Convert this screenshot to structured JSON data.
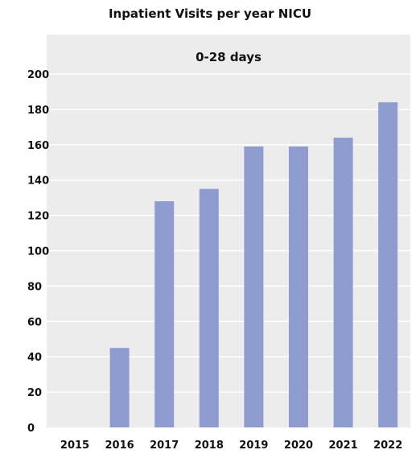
{
  "chart_data": {
    "type": "bar",
    "title": "Inpatient Visits per year NICU",
    "subtitle": "0-28 days",
    "categories": [
      "2015",
      "2016",
      "2017",
      "2018",
      "2019",
      "2020",
      "2021",
      "2022"
    ],
    "values": [
      0,
      45,
      128,
      135,
      159,
      159,
      164,
      184
    ],
    "ylim": [
      0,
      200
    ],
    "yticks": [
      0,
      20,
      40,
      60,
      80,
      100,
      120,
      140,
      160,
      180,
      200
    ],
    "grid": true,
    "colors": {
      "bar": "#8f9ccf",
      "plot_bg": "#ececec",
      "grid": "#ffffff"
    }
  }
}
